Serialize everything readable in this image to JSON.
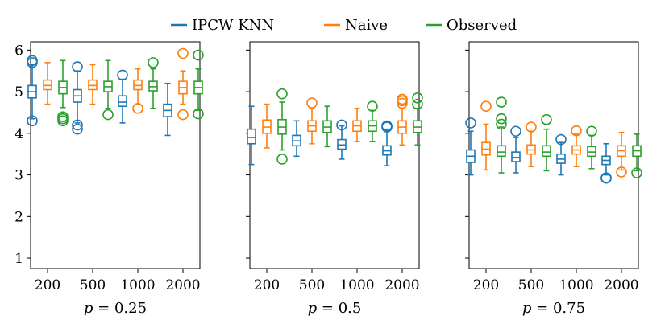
{
  "chart_data": {
    "type": "box",
    "y_ticks": [
      1,
      2,
      3,
      4,
      5,
      6
    ],
    "ylim": [
      0.75,
      6.2
    ],
    "categories": [
      "200",
      "500",
      "1000",
      "2000"
    ],
    "series_names": [
      "IPCW KNN",
      "Naive",
      "Observed"
    ],
    "colors": {
      "IPCW KNN": "#1f77b4",
      "Naive": "#ff7f0e",
      "Observed": "#2ca02c"
    },
    "legend": {
      "placement": "top-center",
      "entries": [
        "IPCW KNN",
        "Naive",
        "Observed"
      ]
    },
    "panels": [
      {
        "xlabel": "p = 0.25",
        "xlabel_var": "p",
        "xlabel_rest": " = 0.25",
        "groups": [
          {
            "category": "200",
            "boxes": [
              {
                "series": "IPCW KNN",
                "whislo": 4.35,
                "q1": 4.85,
                "med": 5.0,
                "q3": 5.15,
                "whishi": 5.65,
                "fliers": [
                  5.75,
                  5.7,
                  4.3
                ]
              },
              {
                "series": "Naive",
                "whislo": 4.7,
                "q1": 5.05,
                "med": 5.15,
                "q3": 5.28,
                "whishi": 5.7,
                "fliers": []
              },
              {
                "series": "Observed",
                "whislo": 4.62,
                "q1": 4.95,
                "med": 5.1,
                "q3": 5.25,
                "whishi": 5.75,
                "fliers": [
                  4.4,
                  4.35,
                  4.3
                ]
              }
            ]
          },
          {
            "category": "500",
            "boxes": [
              {
                "series": "IPCW KNN",
                "whislo": 4.25,
                "q1": 4.75,
                "med": 4.9,
                "q3": 5.05,
                "whishi": 5.5,
                "fliers": [
                  5.6,
                  4.1,
                  4.2
                ]
              },
              {
                "series": "Naive",
                "whislo": 4.7,
                "q1": 5.05,
                "med": 5.15,
                "q3": 5.28,
                "whishi": 5.65,
                "fliers": []
              },
              {
                "series": "Observed",
                "whislo": 4.6,
                "q1": 5.0,
                "med": 5.12,
                "q3": 5.25,
                "whishi": 5.75,
                "fliers": [
                  4.45
                ]
              }
            ]
          },
          {
            "category": "1000",
            "boxes": [
              {
                "series": "IPCW KNN",
                "whislo": 4.25,
                "q1": 4.65,
                "med": 4.75,
                "q3": 4.9,
                "whishi": 5.3,
                "fliers": [
                  5.4
                ]
              },
              {
                "series": "Naive",
                "whislo": 4.7,
                "q1": 5.05,
                "med": 5.15,
                "q3": 5.28,
                "whishi": 5.55,
                "fliers": [
                  4.6
                ]
              },
              {
                "series": "Observed",
                "whislo": 4.6,
                "q1": 5.02,
                "med": 5.12,
                "q3": 5.25,
                "whishi": 5.55,
                "fliers": [
                  5.7
                ]
              }
            ]
          },
          {
            "category": "2000",
            "boxes": [
              {
                "series": "IPCW KNN",
                "whislo": 3.95,
                "q1": 4.4,
                "med": 4.55,
                "q3": 4.7,
                "whishi": 5.2,
                "fliers": []
              },
              {
                "series": "Naive",
                "whislo": 4.7,
                "q1": 4.95,
                "med": 5.1,
                "q3": 5.25,
                "whishi": 5.5,
                "fliers": [
                  5.92,
                  4.45
                ]
              },
              {
                "series": "Observed",
                "whislo": 4.55,
                "q1": 4.95,
                "med": 5.1,
                "q3": 5.25,
                "whishi": 5.55,
                "fliers": [
                  5.88,
                  4.47
                ]
              }
            ]
          }
        ]
      },
      {
        "xlabel": "p = 0.5",
        "xlabel_var": "p",
        "xlabel_rest": " = 0.5",
        "groups": [
          {
            "category": "200",
            "boxes": [
              {
                "series": "IPCW KNN",
                "whislo": 3.25,
                "q1": 3.75,
                "med": 3.9,
                "q3": 4.1,
                "whishi": 4.65,
                "fliers": []
              },
              {
                "series": "Naive",
                "whislo": 3.65,
                "q1": 4.0,
                "med": 4.15,
                "q3": 4.32,
                "whishi": 4.7,
                "fliers": []
              },
              {
                "series": "Observed",
                "whislo": 3.6,
                "q1": 3.98,
                "med": 4.15,
                "q3": 4.33,
                "whishi": 4.75,
                "fliers": [
                  4.95,
                  3.38
                ]
              }
            ]
          },
          {
            "category": "500",
            "boxes": [
              {
                "series": "IPCW KNN",
                "whislo": 3.45,
                "q1": 3.7,
                "med": 3.82,
                "q3": 3.95,
                "whishi": 4.3,
                "fliers": []
              },
              {
                "series": "Naive",
                "whislo": 3.75,
                "q1": 4.05,
                "med": 4.18,
                "q3": 4.3,
                "whishi": 4.6,
                "fliers": [
                  4.73
                ]
              },
              {
                "series": "Observed",
                "whislo": 3.68,
                "q1": 4.02,
                "med": 4.15,
                "q3": 4.3,
                "whishi": 4.65,
                "fliers": []
              }
            ]
          },
          {
            "category": "1000",
            "boxes": [
              {
                "series": "IPCW KNN",
                "whislo": 3.38,
                "q1": 3.62,
                "med": 3.72,
                "q3": 3.85,
                "whishi": 4.18,
                "fliers": [
                  4.2
                ]
              },
              {
                "series": "Naive",
                "whislo": 3.8,
                "q1": 4.05,
                "med": 4.18,
                "q3": 4.3,
                "whishi": 4.6,
                "fliers": []
              },
              {
                "series": "Observed",
                "whislo": 3.8,
                "q1": 4.05,
                "med": 4.18,
                "q3": 4.3,
                "whishi": 4.55,
                "fliers": [
                  4.65
                ]
              }
            ]
          },
          {
            "category": "2000",
            "boxes": [
              {
                "series": "IPCW KNN",
                "whislo": 3.22,
                "q1": 3.48,
                "med": 3.58,
                "q3": 3.7,
                "whishi": 4.1,
                "fliers": [
                  4.18,
                  4.15
                ]
              },
              {
                "series": "Naive",
                "whislo": 3.72,
                "q1": 4.0,
                "med": 4.15,
                "q3": 4.3,
                "whishi": 4.6,
                "fliers": [
                  4.82,
                  4.78,
                  4.72
                ]
              },
              {
                "series": "Observed",
                "whislo": 3.72,
                "q1": 4.02,
                "med": 4.15,
                "q3": 4.3,
                "whishi": 4.6,
                "fliers": [
                  4.85,
                  4.7
                ]
              }
            ]
          }
        ]
      },
      {
        "xlabel": "p = 0.75",
        "xlabel_var": "p",
        "xlabel_rest": " = 0.75",
        "groups": [
          {
            "category": "200",
            "boxes": [
              {
                "series": "IPCW KNN",
                "whislo": 3.0,
                "q1": 3.3,
                "med": 3.45,
                "q3": 3.6,
                "whishi": 4.05,
                "fliers": [
                  4.25
                ]
              },
              {
                "series": "Naive",
                "whislo": 3.12,
                "q1": 3.48,
                "med": 3.62,
                "q3": 3.78,
                "whishi": 4.22,
                "fliers": [
                  4.65
                ]
              },
              {
                "series": "Observed",
                "whislo": 3.05,
                "q1": 3.45,
                "med": 3.55,
                "q3": 3.7,
                "whishi": 4.15,
                "fliers": [
                  4.75,
                  4.35,
                  4.22
                ]
              }
            ]
          },
          {
            "category": "500",
            "boxes": [
              {
                "series": "IPCW KNN",
                "whislo": 3.05,
                "q1": 3.32,
                "med": 3.42,
                "q3": 3.55,
                "whishi": 3.9,
                "fliers": [
                  4.05
                ]
              },
              {
                "series": "Naive",
                "whislo": 3.2,
                "q1": 3.5,
                "med": 3.6,
                "q3": 3.72,
                "whishi": 4.05,
                "fliers": [
                  4.15
                ]
              },
              {
                "series": "Observed",
                "whislo": 3.1,
                "q1": 3.45,
                "med": 3.55,
                "q3": 3.7,
                "whishi": 4.1,
                "fliers": [
                  4.33
                ]
              }
            ]
          },
          {
            "category": "1000",
            "boxes": [
              {
                "series": "IPCW KNN",
                "whislo": 3.0,
                "q1": 3.28,
                "med": 3.38,
                "q3": 3.5,
                "whishi": 3.78,
                "fliers": [
                  3.85
                ]
              },
              {
                "series": "Naive",
                "whislo": 3.2,
                "q1": 3.5,
                "med": 3.6,
                "q3": 3.7,
                "whishi": 3.98,
                "fliers": [
                  4.06
                ]
              },
              {
                "series": "Observed",
                "whislo": 3.15,
                "q1": 3.45,
                "med": 3.55,
                "q3": 3.68,
                "whishi": 3.95,
                "fliers": [
                  4.05
                ]
              }
            ]
          },
          {
            "category": "2000",
            "boxes": [
              {
                "series": "IPCW KNN",
                "whislo": 3.0,
                "q1": 3.25,
                "med": 3.35,
                "q3": 3.45,
                "whishi": 3.75,
                "fliers": [
                  2.93,
                  2.92
                ]
              },
              {
                "series": "Naive",
                "whislo": 3.12,
                "q1": 3.45,
                "med": 3.58,
                "q3": 3.7,
                "whishi": 4.02,
                "fliers": [
                  3.07
                ]
              },
              {
                "series": "Observed",
                "whislo": 3.1,
                "q1": 3.45,
                "med": 3.58,
                "q3": 3.7,
                "whishi": 3.98,
                "fliers": [
                  3.05
                ]
              }
            ]
          }
        ]
      }
    ]
  }
}
